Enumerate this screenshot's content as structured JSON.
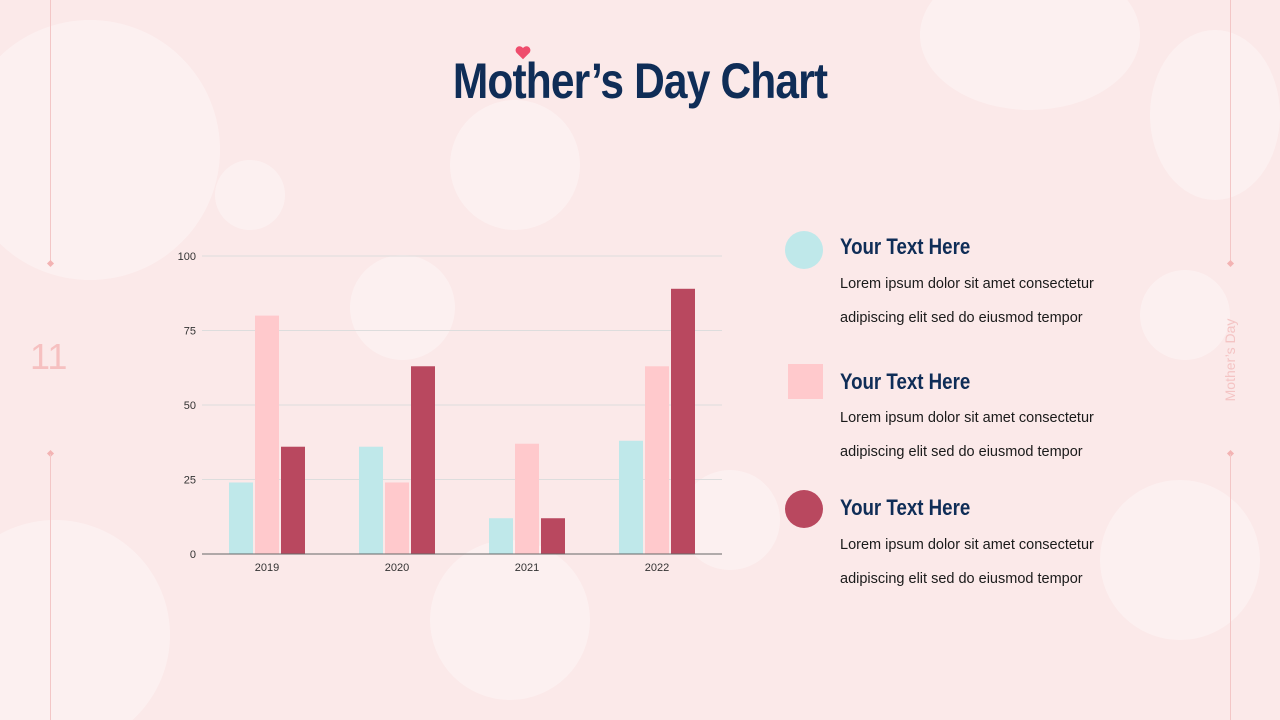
{
  "slide": {
    "number": "11",
    "vertical_label": "Mother’s Day",
    "title": "Mother’s Day Chart"
  },
  "colors": {
    "series_1": "#bfe8ea",
    "series_2": "#ffc9cc",
    "series_3": "#b9485f",
    "title": "#0f2d57",
    "heart": "#ef4d6d"
  },
  "legend": [
    {
      "heading": "Your Text Here",
      "body": "Lorem ipsum dolor sit amet consectetur adipiscing elit sed do eiusmod tempor",
      "shape": "circle"
    },
    {
      "heading": "Your Text Here",
      "body": "Lorem ipsum dolor sit amet consectetur adipiscing elit sed do eiusmod tempor",
      "shape": "square"
    },
    {
      "heading": "Your Text Here",
      "body": "Lorem ipsum dolor sit amet consectetur adipiscing elit sed do eiusmod tempor",
      "shape": "circle"
    }
  ],
  "chart_data": {
    "type": "bar",
    "title": "",
    "xlabel": "",
    "ylabel": "",
    "categories": [
      "2019",
      "2020",
      "2021",
      "2022"
    ],
    "series": [
      {
        "values": [
          24,
          36,
          12,
          38
        ]
      },
      {
        "values": [
          80,
          24,
          37,
          63
        ]
      },
      {
        "values": [
          36,
          63,
          12,
          89
        ]
      }
    ],
    "yticks": [
      "0",
      "25",
      "50",
      "75",
      "100"
    ],
    "ylim": [
      0,
      100
    ],
    "grid": true,
    "legend": "none"
  }
}
